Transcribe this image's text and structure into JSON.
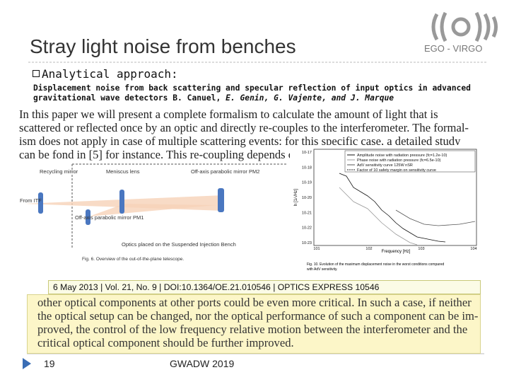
{
  "header": {
    "title": "Stray light noise from benches",
    "org": "EGO - VIRGO"
  },
  "bullet": "Analytical approach:",
  "reference": {
    "line1": "Displacement noise from back scattering and specular reflection of input optics in advanced",
    "line2": "gravitational wave detectors B. Canuel, ",
    "authors": "E. Genin, G. Vajente, and J. Marque"
  },
  "paper_top": [
    "In this paper we will present a complete formalism to calculate the amount of light that is",
    "scattered or reflected once by an optic and directly re-couples to the interferometer. The formal-",
    "ism does not apply in case of multiple scattering events: for this specific case, a detailed study",
    "can be fond in [5] for instance. This re-coupling depends o"
  ],
  "figure_left": {
    "labels": [
      "Recycling mirror",
      "Meniscus lens",
      "Off-axis parabolic mirror PM2",
      "From ITF",
      "Off-axis parabolic mirror PM1",
      "Optics placed on the Suspended Injection Bench"
    ],
    "caption": "Fig. 6. Overview of the out-of-the-plane telescope."
  },
  "figure_right": {
    "legend": [
      "Amplitude noise with radiation pressure (fc=1.2e-10)",
      "Phase noise with radiation pressure (fc=6.5e-10)",
      "AdV sensitivity curve 125W nSR",
      "Factor of 10 safety margin on sensitivity curve"
    ],
    "yticks": [
      "10-17",
      "10-18",
      "10-19",
      "10-20",
      "10-21",
      "10-22",
      "10-23"
    ],
    "xticks": [
      "101",
      "102",
      "103",
      "104"
    ],
    "ylabel": "h [1/√Hz]",
    "xlabel": "Frequency [Hz]",
    "caption": [
      "Fig. 10. Evolution of the maximum displacement noise in the worst conditions compared",
      "with AdV sensitivity."
    ]
  },
  "citation": "6 May 2013 | Vol. 21, No. 9 | DOI:10.1364/OE.21.010546 | OPTICS EXPRESS 10546",
  "paper_bottom": [
    "other optical components at other ports could be even more critical. In such a case, if neither",
    "the optical setup can be changed, nor the optical performance of such a component can be im-",
    "proved, the control of the low frequency relative motion between the interferometer and the",
    "critical optical component should be further improved."
  ],
  "footer": {
    "page": "19",
    "event": "GWADW 2019"
  }
}
